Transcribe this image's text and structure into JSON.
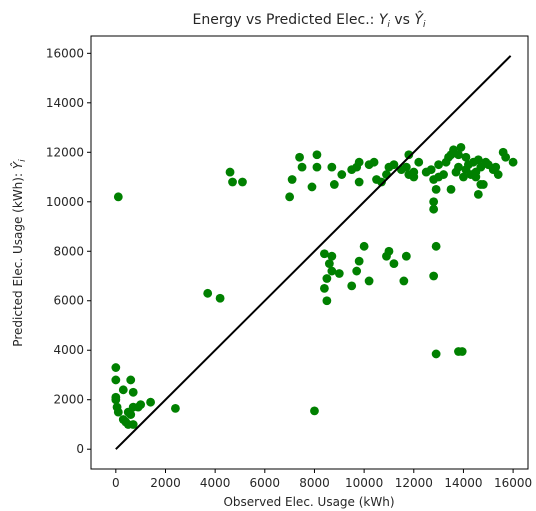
{
  "chart_data": {
    "type": "scatter",
    "title": "Energy vs Predicted Elec.: ",
    "title_math_1": "Y",
    "title_math_1_sub": "i",
    "title_mid": " vs ",
    "title_math_2": "Ŷ",
    "title_math_2_sub": "i",
    "xlabel": "Observed Elec. Usage (kWh)",
    "ylabel": "Predicted Elec. Usage (kWh): ",
    "ylabel_math": "Ŷ",
    "ylabel_math_sub": "i",
    "xlim": [
      -1000,
      16600
    ],
    "ylim": [
      -800,
      16700
    ],
    "xticks": [
      0,
      2000,
      4000,
      6000,
      8000,
      10000,
      12000,
      14000,
      16000
    ],
    "yticks": [
      0,
      2000,
      4000,
      6000,
      8000,
      10000,
      12000,
      14000,
      16000
    ],
    "grid": false,
    "colors": {
      "points": "#008000",
      "line": "#000000",
      "axes": "#000000"
    },
    "line": {
      "name": "",
      "x": [
        0,
        15900
      ],
      "y": [
        0,
        15900
      ]
    },
    "series": [
      {
        "name": "",
        "points": [
          [
            100,
            10200
          ],
          [
            0,
            3300
          ],
          [
            0,
            2800
          ],
          [
            0,
            2100
          ],
          [
            0,
            2000
          ],
          [
            50,
            1700
          ],
          [
            100,
            1500
          ],
          [
            300,
            1200
          ],
          [
            400,
            1100
          ],
          [
            500,
            1000
          ],
          [
            700,
            1000
          ],
          [
            600,
            1400
          ],
          [
            700,
            1700
          ],
          [
            900,
            1700
          ],
          [
            300,
            2400
          ],
          [
            500,
            1500
          ],
          [
            600,
            2800
          ],
          [
            700,
            2300
          ],
          [
            1000,
            1800
          ],
          [
            1400,
            1900
          ],
          [
            2400,
            1650
          ],
          [
            3700,
            6300
          ],
          [
            4200,
            6100
          ],
          [
            4600,
            11200
          ],
          [
            4700,
            10800
          ],
          [
            5100,
            10800
          ],
          [
            7000,
            10200
          ],
          [
            7100,
            10900
          ],
          [
            7400,
            11800
          ],
          [
            7500,
            11400
          ],
          [
            7900,
            10600
          ],
          [
            8100,
            11900
          ],
          [
            8100,
            11400
          ],
          [
            8700,
            11400
          ],
          [
            8800,
            10700
          ],
          [
            9100,
            11100
          ],
          [
            9500,
            11300
          ],
          [
            9700,
            11400
          ],
          [
            9800,
            11600
          ],
          [
            9800,
            10800
          ],
          [
            10200,
            11500
          ],
          [
            10400,
            11600
          ],
          [
            10500,
            10900
          ],
          [
            10700,
            10800
          ],
          [
            10900,
            11100
          ],
          [
            11000,
            11400
          ],
          [
            11200,
            11500
          ],
          [
            11500,
            11300
          ],
          [
            11700,
            11400
          ],
          [
            11800,
            11900
          ],
          [
            12000,
            11200
          ],
          [
            11800,
            11100
          ],
          [
            12000,
            11000
          ],
          [
            12200,
            11600
          ],
          [
            12500,
            11200
          ],
          [
            12700,
            11300
          ],
          [
            12900,
            10500
          ],
          [
            13000,
            11500
          ],
          [
            13200,
            11100
          ],
          [
            13400,
            11800
          ],
          [
            13500,
            10500
          ],
          [
            13600,
            12100
          ],
          [
            13700,
            11200
          ],
          [
            13800,
            11900
          ],
          [
            13900,
            12200
          ],
          [
            14100,
            11300
          ],
          [
            14200,
            11500
          ],
          [
            14300,
            11100
          ],
          [
            14400,
            11600
          ],
          [
            14500,
            11000
          ],
          [
            14600,
            11700
          ],
          [
            14700,
            11400
          ],
          [
            14800,
            10700
          ],
          [
            15000,
            11500
          ],
          [
            15200,
            11300
          ],
          [
            15400,
            11100
          ],
          [
            15600,
            12000
          ],
          [
            15700,
            11800
          ],
          [
            16000,
            11600
          ],
          [
            13000,
            11000
          ],
          [
            13300,
            11600
          ],
          [
            13800,
            11400
          ],
          [
            14100,
            11800
          ],
          [
            14500,
            11200
          ],
          [
            12800,
            10900
          ],
          [
            13500,
            11900
          ],
          [
            14900,
            11600
          ],
          [
            15300,
            11400
          ],
          [
            14600,
            10300
          ],
          [
            14700,
            10700
          ],
          [
            14000,
            11000
          ],
          [
            12800,
            9700
          ],
          [
            12800,
            10000
          ],
          [
            8400,
            7900
          ],
          [
            8600,
            7500
          ],
          [
            8700,
            7800
          ],
          [
            8500,
            6900
          ],
          [
            8400,
            6500
          ],
          [
            8500,
            6000
          ],
          [
            8700,
            7200
          ],
          [
            9000,
            7100
          ],
          [
            9500,
            6600
          ],
          [
            9700,
            7200
          ],
          [
            9800,
            7600
          ],
          [
            10000,
            8200
          ],
          [
            10200,
            6800
          ],
          [
            10900,
            7800
          ],
          [
            11000,
            8000
          ],
          [
            11200,
            7500
          ],
          [
            11700,
            7800
          ],
          [
            11600,
            6800
          ],
          [
            12800,
            7000
          ],
          [
            12900,
            8200
          ],
          [
            12900,
            3850
          ],
          [
            13800,
            3950
          ],
          [
            13950,
            3950
          ],
          [
            8000,
            1550
          ]
        ]
      }
    ]
  }
}
